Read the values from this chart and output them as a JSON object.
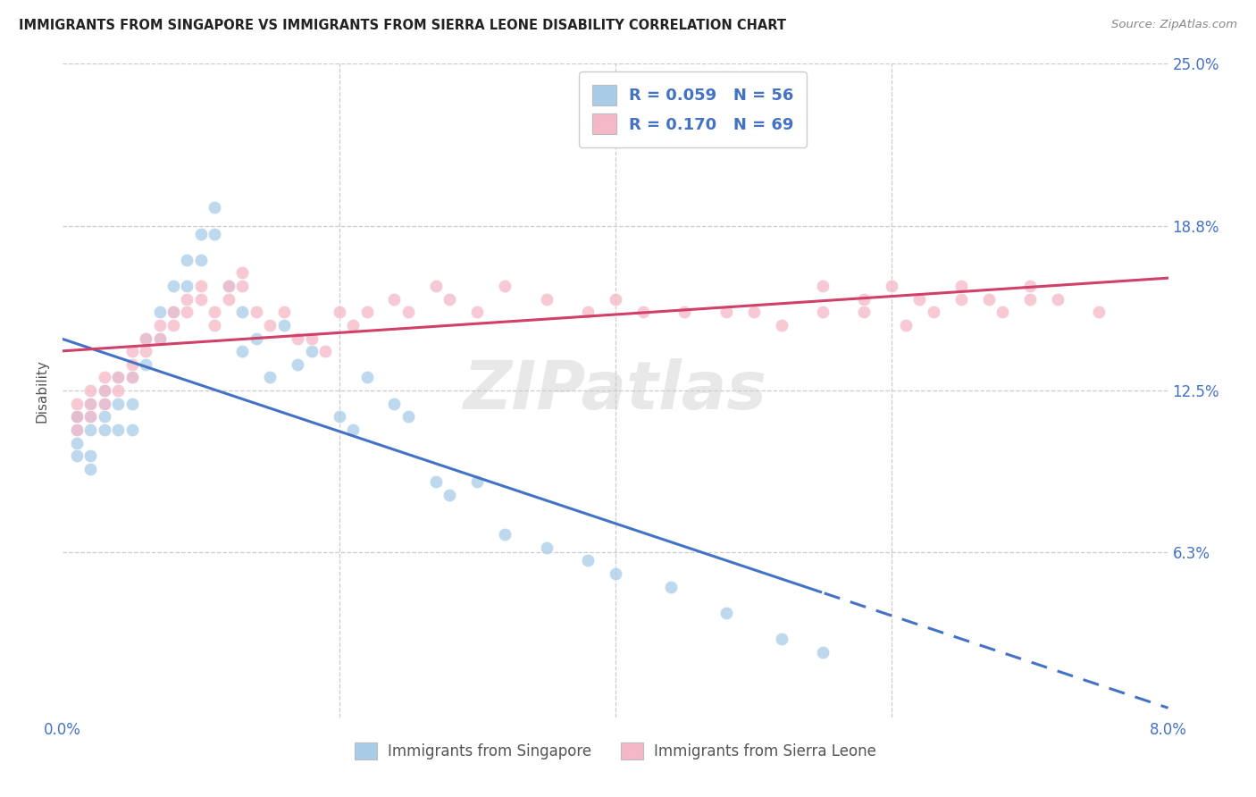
{
  "title": "IMMIGRANTS FROM SINGAPORE VS IMMIGRANTS FROM SIERRA LEONE DISABILITY CORRELATION CHART",
  "source": "Source: ZipAtlas.com",
  "ylabel": "Disability",
  "xlim": [
    0.0,
    0.08
  ],
  "ylim": [
    0.0,
    0.25
  ],
  "y_ticks": [
    0.0,
    0.063,
    0.125,
    0.188,
    0.25
  ],
  "y_tick_labels": [
    "",
    "6.3%",
    "12.5%",
    "18.8%",
    "25.0%"
  ],
  "x_ticks": [
    0.0,
    0.02,
    0.04,
    0.06,
    0.08
  ],
  "x_tick_labels": [
    "0.0%",
    "",
    "",
    "",
    "8.0%"
  ],
  "r1": 0.059,
  "n1": 56,
  "r2": 0.17,
  "n2": 69,
  "legend1_R": "0.059",
  "legend1_N": "56",
  "legend2_R": "0.170",
  "legend2_N": "69",
  "color_singapore": "#a8cce8",
  "color_sierra_leone": "#f5b8c8",
  "color_line_singapore": "#4472c4",
  "color_line_sierra_leone": "#d04068",
  "bottom_legend1": "Immigrants from Singapore",
  "bottom_legend2": "Immigrants from Sierra Leone",
  "watermark": "ZIPatlas",
  "sg_x": [
    0.001,
    0.001,
    0.001,
    0.001,
    0.001,
    0.002,
    0.002,
    0.002,
    0.002,
    0.002,
    0.003,
    0.003,
    0.003,
    0.003,
    0.004,
    0.004,
    0.004,
    0.005,
    0.005,
    0.005,
    0.006,
    0.006,
    0.007,
    0.007,
    0.008,
    0.008,
    0.009,
    0.009,
    0.01,
    0.01,
    0.011,
    0.011,
    0.012,
    0.013,
    0.013,
    0.014,
    0.015,
    0.016,
    0.017,
    0.018,
    0.02,
    0.021,
    0.022,
    0.024,
    0.025,
    0.027,
    0.028,
    0.03,
    0.032,
    0.035,
    0.038,
    0.04,
    0.044,
    0.048,
    0.052,
    0.055
  ],
  "sg_y": [
    0.115,
    0.115,
    0.11,
    0.105,
    0.1,
    0.12,
    0.115,
    0.11,
    0.1,
    0.095,
    0.125,
    0.12,
    0.115,
    0.11,
    0.13,
    0.12,
    0.11,
    0.13,
    0.12,
    0.11,
    0.145,
    0.135,
    0.155,
    0.145,
    0.165,
    0.155,
    0.175,
    0.165,
    0.185,
    0.175,
    0.195,
    0.185,
    0.165,
    0.155,
    0.14,
    0.145,
    0.13,
    0.15,
    0.135,
    0.14,
    0.115,
    0.11,
    0.13,
    0.12,
    0.115,
    0.09,
    0.085,
    0.09,
    0.07,
    0.065,
    0.06,
    0.055,
    0.05,
    0.04,
    0.03,
    0.025
  ],
  "sl_x": [
    0.001,
    0.001,
    0.001,
    0.002,
    0.002,
    0.002,
    0.003,
    0.003,
    0.003,
    0.004,
    0.004,
    0.005,
    0.005,
    0.005,
    0.006,
    0.006,
    0.007,
    0.007,
    0.008,
    0.008,
    0.009,
    0.009,
    0.01,
    0.01,
    0.011,
    0.011,
    0.012,
    0.012,
    0.013,
    0.013,
    0.014,
    0.015,
    0.016,
    0.017,
    0.018,
    0.019,
    0.02,
    0.021,
    0.022,
    0.024,
    0.025,
    0.027,
    0.028,
    0.03,
    0.032,
    0.035,
    0.038,
    0.04,
    0.042,
    0.045,
    0.048,
    0.05,
    0.052,
    0.055,
    0.058,
    0.061,
    0.063,
    0.065,
    0.068,
    0.07,
    0.055,
    0.058,
    0.06,
    0.062,
    0.065,
    0.067,
    0.07,
    0.072,
    0.075
  ],
  "sl_y": [
    0.12,
    0.115,
    0.11,
    0.125,
    0.12,
    0.115,
    0.13,
    0.125,
    0.12,
    0.13,
    0.125,
    0.14,
    0.135,
    0.13,
    0.145,
    0.14,
    0.15,
    0.145,
    0.155,
    0.15,
    0.16,
    0.155,
    0.165,
    0.16,
    0.155,
    0.15,
    0.165,
    0.16,
    0.17,
    0.165,
    0.155,
    0.15,
    0.155,
    0.145,
    0.145,
    0.14,
    0.155,
    0.15,
    0.155,
    0.16,
    0.155,
    0.165,
    0.16,
    0.155,
    0.165,
    0.16,
    0.155,
    0.16,
    0.155,
    0.155,
    0.155,
    0.155,
    0.15,
    0.155,
    0.155,
    0.15,
    0.155,
    0.16,
    0.155,
    0.16,
    0.165,
    0.16,
    0.165,
    0.16,
    0.165,
    0.16,
    0.165,
    0.16,
    0.155
  ]
}
